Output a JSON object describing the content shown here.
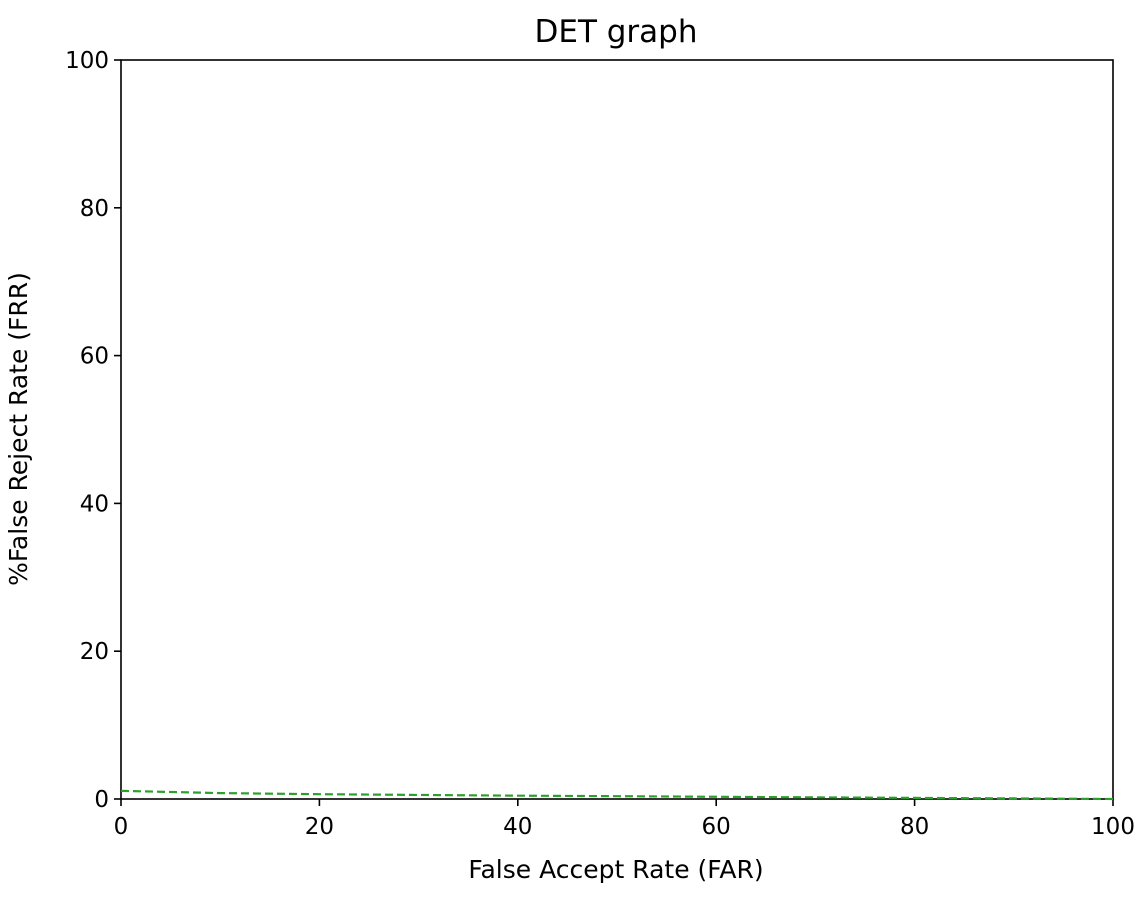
{
  "chart_data": {
    "type": "line",
    "title": "DET graph",
    "xlabel": "False Accept Rate (FAR)",
    "ylabel": "%False Reject Rate (FRR)",
    "xlim": [
      0,
      100
    ],
    "ylim": [
      0,
      100
    ],
    "xticks": [
      0,
      20,
      40,
      60,
      80,
      100
    ],
    "yticks": [
      0,
      20,
      40,
      60,
      80,
      100
    ],
    "grid": false,
    "series": [
      {
        "color": "#2ca02c",
        "line_style": "dashed",
        "x": [
          0,
          10,
          20,
          30,
          40,
          50,
          60,
          70,
          80,
          90,
          100
        ],
        "y": [
          1.1,
          0.8,
          0.65,
          0.55,
          0.45,
          0.38,
          0.3,
          0.22,
          0.15,
          0.08,
          0.0
        ]
      }
    ]
  }
}
